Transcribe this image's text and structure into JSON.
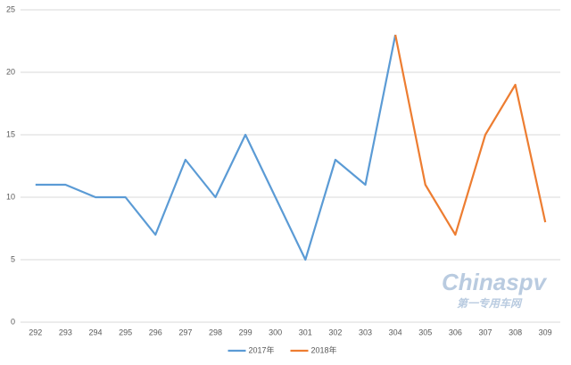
{
  "chart_data": {
    "type": "line",
    "categories": [
      "292",
      "293",
      "294",
      "295",
      "296",
      "297",
      "298",
      "299",
      "300",
      "301",
      "302",
      "303",
      "304",
      "305",
      "306",
      "307",
      "308",
      "309"
    ],
    "series": [
      {
        "name": "2017年",
        "color": "#5b9bd5",
        "values": [
          11,
          11,
          10,
          10,
          7,
          13,
          10,
          15,
          10,
          5,
          13,
          11,
          23,
          null,
          null,
          null,
          null,
          null
        ]
      },
      {
        "name": "2018年",
        "color": "#ed7d31",
        "values": [
          null,
          null,
          null,
          null,
          null,
          null,
          null,
          null,
          null,
          null,
          null,
          null,
          23,
          11,
          7,
          15,
          19,
          8
        ]
      }
    ],
    "ylim": [
      0,
      25
    ],
    "yticks": [
      0,
      5,
      10,
      15,
      20,
      25
    ],
    "grid": true,
    "legend": "bottom",
    "watermark": {
      "brand": "Chinaspv",
      "site": "第一专用车网"
    }
  }
}
